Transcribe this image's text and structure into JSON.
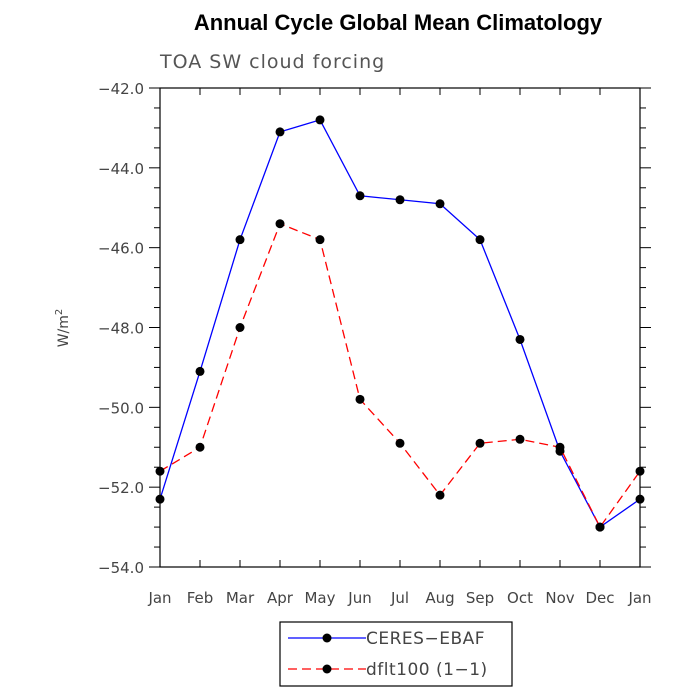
{
  "chart_data": {
    "type": "line",
    "title": "Annual Cycle Global Mean Climatology",
    "subtitle": "TOA SW cloud forcing",
    "ylabel_base": "W/m",
    "ylabel_sup": "2",
    "xlabel": "",
    "categories": [
      "Jan",
      "Feb",
      "Mar",
      "Apr",
      "May",
      "Jun",
      "Jul",
      "Aug",
      "Sep",
      "Oct",
      "Nov",
      "Dec",
      "Jan"
    ],
    "ylim": [
      -54.0,
      -42.0
    ],
    "yticks": [
      -42.0,
      -44.0,
      -46.0,
      -48.0,
      -50.0,
      -52.0,
      -54.0
    ],
    "ytick_labels": [
      "−42.0",
      "−44.0",
      "−46.0",
      "−48.0",
      "−50.0",
      "−52.0",
      "−54.0"
    ],
    "legend_position": "bottom-center",
    "grid": false,
    "series": [
      {
        "name": "CERES−EBAF",
        "color": "#0000ff",
        "dash": "solid",
        "values": [
          -52.3,
          -49.1,
          -45.8,
          -43.1,
          -42.8,
          -44.7,
          -44.8,
          -44.9,
          -45.8,
          -48.3,
          -51.1,
          -53.0,
          -52.3
        ]
      },
      {
        "name": "dflt100 (1−1)",
        "color": "#ff0000",
        "dash": "dashed",
        "values": [
          -51.6,
          -51.0,
          -48.0,
          -45.4,
          -45.8,
          -49.8,
          -50.9,
          -52.2,
          -50.9,
          -50.8,
          -51.0,
          -53.0,
          -51.6
        ]
      }
    ]
  }
}
